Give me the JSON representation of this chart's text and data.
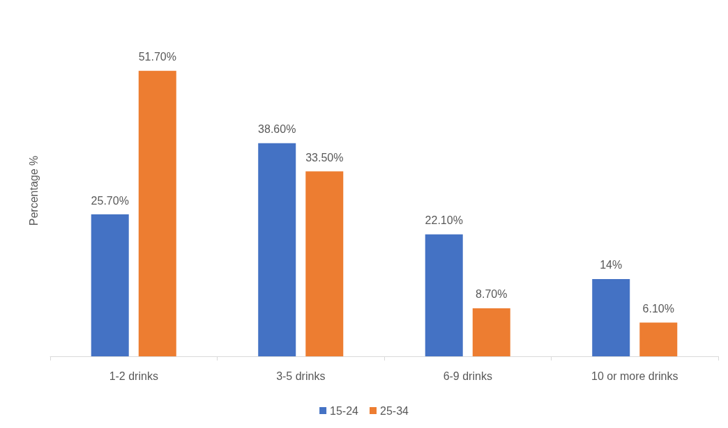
{
  "chart_data": {
    "type": "bar",
    "ylabel": "Percentage %",
    "categories": [
      "1-2 drinks",
      "3-5 drinks",
      "6-9 drinks",
      "10 or more drinks"
    ],
    "series": [
      {
        "name": "15-24",
        "color": "#4472c4",
        "values": [
          25.7,
          38.6,
          22.1,
          14
        ],
        "value_labels": [
          "25.70%",
          "38.60%",
          "22.10%",
          "14%"
        ]
      },
      {
        "name": "25-34",
        "color": "#ed7d31",
        "values": [
          51.7,
          33.5,
          8.7,
          6.1
        ],
        "value_labels": [
          "51.70%",
          "33.50%",
          "8.70%",
          "6.10%"
        ]
      }
    ],
    "legend": "bottom",
    "grid": false,
    "tick_labels": "x"
  }
}
